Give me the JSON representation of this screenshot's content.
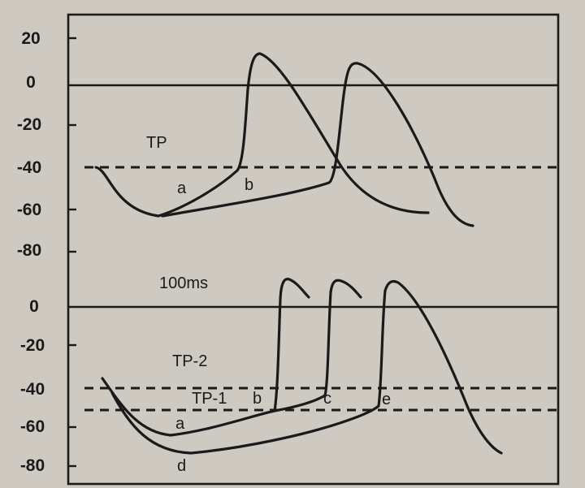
{
  "top_panel": {
    "y_ticks": [
      "20",
      "0",
      "-20",
      "-40",
      "-60",
      "-80"
    ],
    "title": "TP",
    "labels": {
      "a": "a",
      "b": "b"
    }
  },
  "bottom_panel": {
    "scale_label": "100ms",
    "y_ticks": [
      "0",
      "-20",
      "-40",
      "-60",
      "-80"
    ],
    "labels": {
      "tp2": "TP-2",
      "tp1": "TP-1",
      "a": "a",
      "b": "b",
      "c": "c",
      "d": "d",
      "e": "e"
    }
  },
  "colors": {
    "ink": "#1a1a1a",
    "paper": "#cfcac1"
  }
}
